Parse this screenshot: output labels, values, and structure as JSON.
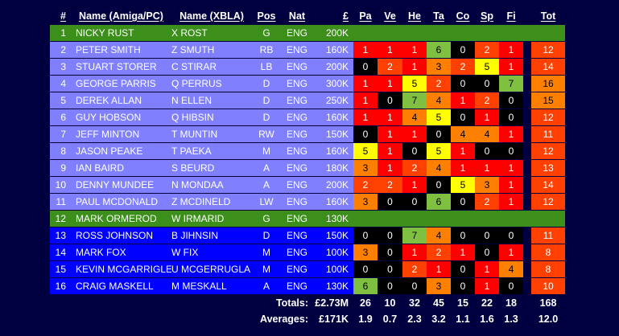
{
  "colors": {
    "background": "#000040",
    "row_green": "#3b8f1a",
    "row_lavender": "#8080ff",
    "row_blue": "#0000ff",
    "stat_red": "#ff0000",
    "stat_black": "#000000",
    "stat_orange": "#ff8000",
    "stat_yellow": "#ffff00",
    "stat_lime": "#80c040",
    "stat_orangered": "#ff4000"
  },
  "headers": {
    "num": "#",
    "name_pc": "Name (Amiga/PC)",
    "name_xbla": "Name (XBLA)",
    "pos": "Pos",
    "nat": "Nat",
    "price": "£",
    "pa": "Pa",
    "ve": "Ve",
    "he": "He",
    "ta": "Ta",
    "co": "Co",
    "sp": "Sp",
    "fi": "Fi",
    "tot": "Tot"
  },
  "players": [
    {
      "num": "1",
      "name_pc": "NICKY RUST",
      "name_xbla": "X ROST",
      "pos": "G",
      "nat": "ENG",
      "price": "200K",
      "stats": [
        "",
        "",
        "",
        "",
        "",
        "",
        ""
      ],
      "tot": "",
      "group": "keeper"
    },
    {
      "num": "2",
      "name_pc": "PETER SMITH",
      "name_xbla": "Z SMUTH",
      "pos": "RB",
      "nat": "ENG",
      "price": "160K",
      "stats": [
        "1",
        "1",
        "1",
        "6",
        "0",
        "2",
        "1"
      ],
      "tot": "12",
      "group": "squad"
    },
    {
      "num": "3",
      "name_pc": "STUART STORER",
      "name_xbla": "C STIRAR",
      "pos": "LB",
      "nat": "ENG",
      "price": "200K",
      "stats": [
        "0",
        "2",
        "1",
        "3",
        "2",
        "5",
        "1"
      ],
      "tot": "14",
      "group": "squad"
    },
    {
      "num": "4",
      "name_pc": "GEORGE PARRIS",
      "name_xbla": "Q PERRUS",
      "pos": "D",
      "nat": "ENG",
      "price": "300K",
      "stats": [
        "1",
        "1",
        "5",
        "2",
        "0",
        "0",
        "7"
      ],
      "tot": "16",
      "group": "squad"
    },
    {
      "num": "5",
      "name_pc": "DEREK ALLAN",
      "name_xbla": "N ELLEN",
      "pos": "D",
      "nat": "ENG",
      "price": "250K",
      "stats": [
        "1",
        "0",
        "7",
        "4",
        "1",
        "2",
        "0"
      ],
      "tot": "15",
      "group": "squad"
    },
    {
      "num": "6",
      "name_pc": "GUY HOBSON",
      "name_xbla": "Q HIBSIN",
      "pos": "D",
      "nat": "ENG",
      "price": "160K",
      "stats": [
        "1",
        "1",
        "4",
        "5",
        "0",
        "1",
        "0"
      ],
      "tot": "12",
      "group": "squad"
    },
    {
      "num": "7",
      "name_pc": "JEFF MINTON",
      "name_xbla": "T MUNTIN",
      "pos": "RW",
      "nat": "ENG",
      "price": "150K",
      "stats": [
        "0",
        "1",
        "1",
        "0",
        "4",
        "4",
        "1"
      ],
      "tot": "11",
      "group": "squad"
    },
    {
      "num": "8",
      "name_pc": "JASON PEAKE",
      "name_xbla": "T PAEKA",
      "pos": "M",
      "nat": "ENG",
      "price": "160K",
      "stats": [
        "5",
        "1",
        "0",
        "5",
        "1",
        "0",
        "0"
      ],
      "tot": "12",
      "group": "squad"
    },
    {
      "num": "9",
      "name_pc": "IAN BAIRD",
      "name_xbla": "S BEURD",
      "pos": "A",
      "nat": "ENG",
      "price": "180K",
      "stats": [
        "3",
        "1",
        "2",
        "4",
        "1",
        "1",
        "1"
      ],
      "tot": "13",
      "group": "squad"
    },
    {
      "num": "10",
      "name_pc": "DENNY MUNDEE",
      "name_xbla": "N MONDAA",
      "pos": "A",
      "nat": "ENG",
      "price": "200K",
      "stats": [
        "2",
        "2",
        "1",
        "0",
        "5",
        "3",
        "1"
      ],
      "tot": "14",
      "group": "squad"
    },
    {
      "num": "11",
      "name_pc": "PAUL MCDONALD",
      "name_xbla": "Z MCDINELD",
      "pos": "LW",
      "nat": "ENG",
      "price": "160K",
      "stats": [
        "3",
        "0",
        "0",
        "6",
        "0",
        "2",
        "1"
      ],
      "tot": "12",
      "group": "squad"
    },
    {
      "num": "12",
      "name_pc": "MARK ORMEROD",
      "name_xbla": "W IRMARID",
      "pos": "G",
      "nat": "ENG",
      "price": "130K",
      "stats": [
        "",
        "",
        "",
        "",
        "",
        "",
        ""
      ],
      "tot": "",
      "group": "keeper"
    },
    {
      "num": "13",
      "name_pc": "ROSS JOHNSON",
      "name_xbla": "B JIHNSIN",
      "pos": "D",
      "nat": "ENG",
      "price": "150K",
      "stats": [
        "0",
        "0",
        "7",
        "4",
        "0",
        "0",
        "0"
      ],
      "tot": "11",
      "group": "sub"
    },
    {
      "num": "14",
      "name_pc": "MARK FOX",
      "name_xbla": "W FIX",
      "pos": "M",
      "nat": "ENG",
      "price": "100K",
      "stats": [
        "3",
        "0",
        "1",
        "2",
        "1",
        "0",
        "1"
      ],
      "tot": "8",
      "group": "sub"
    },
    {
      "num": "15",
      "name_pc": "KEVIN MCGARRIGLE",
      "name_xbla": "U MCGERRUGLA",
      "pos": "M",
      "nat": "ENG",
      "price": "100K",
      "stats": [
        "0",
        "0",
        "2",
        "1",
        "0",
        "1",
        "4"
      ],
      "tot": "8",
      "group": "sub"
    },
    {
      "num": "16",
      "name_pc": "CRAIG MASKELL",
      "name_xbla": "M MESKALL",
      "pos": "A",
      "nat": "ENG",
      "price": "130K",
      "stats": [
        "6",
        "0",
        "0",
        "3",
        "0",
        "1",
        "0"
      ],
      "tot": "10",
      "group": "sub"
    }
  ],
  "totals": {
    "label": "Totals:",
    "price": "£2.73M",
    "stats": [
      "26",
      "10",
      "32",
      "45",
      "15",
      "22",
      "18"
    ],
    "tot": "168"
  },
  "averages": {
    "label": "Averages:",
    "price": "£171K",
    "stats": [
      "1.9",
      "0.7",
      "2.3",
      "3.2",
      "1.1",
      "1.6",
      "1.3"
    ],
    "tot": "12.0"
  }
}
